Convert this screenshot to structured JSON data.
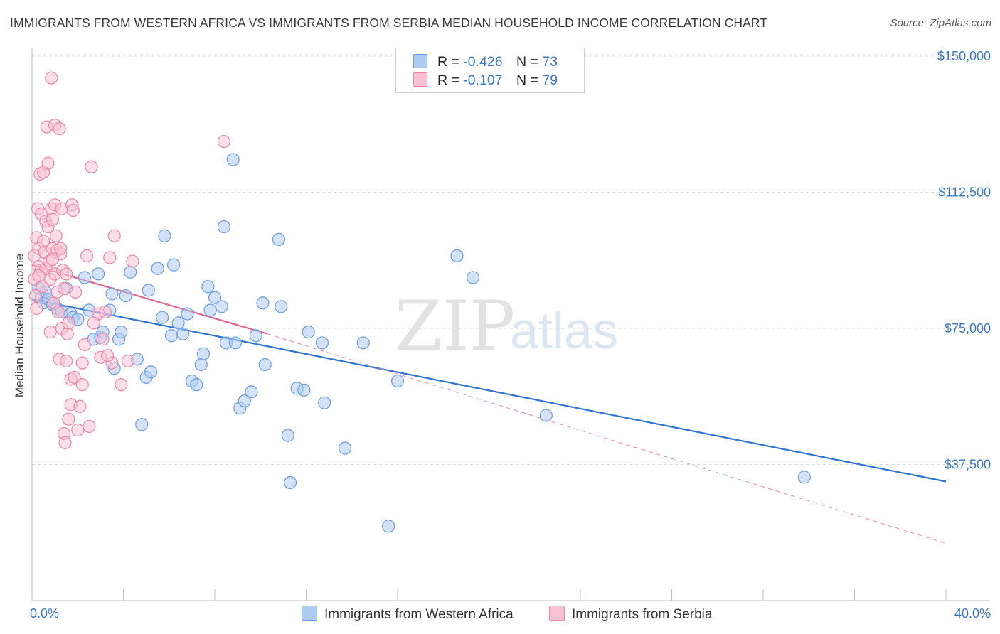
{
  "header": {
    "title": "IMMIGRANTS FROM WESTERN AFRICA VS IMMIGRANTS FROM SERBIA MEDIAN HOUSEHOLD INCOME CORRELATION CHART",
    "source": "Source: ZipAtlas.com"
  },
  "watermark": {
    "zip": "ZIP",
    "atlas": "atlas"
  },
  "legend": {
    "r_label": "R =",
    "n_label": "N =",
    "rows": [
      {
        "r": "-0.426",
        "n": "73",
        "color": "#aecbf0",
        "border": "#6a9de0"
      },
      {
        "r": "-0.107",
        "n": "79",
        "color": "#f8c2d4",
        "border": "#ec86a8"
      }
    ]
  },
  "bottom_legend": {
    "items": [
      {
        "label": "Immigrants from Western Africa",
        "color": "#aecbf0",
        "border": "#6a9de0"
      },
      {
        "label": "Immigrants from Serbia",
        "color": "#f8c2d4",
        "border": "#ec86a8"
      }
    ]
  },
  "chart_data": {
    "type": "scatter",
    "title": "IMMIGRANTS FROM WESTERN AFRICA VS IMMIGRANTS FROM SERBIA MEDIAN HOUSEHOLD INCOME CORRELATION CHART",
    "xlabel": "",
    "ylabel": "Median Household Income",
    "xlim": [
      0,
      40
    ],
    "ylim": [
      0,
      155000
    ],
    "x_tick_labels": [
      "0.0%",
      "40.0%"
    ],
    "y_ticks": [
      37500,
      75000,
      112500,
      150000
    ],
    "y_tick_labels": [
      "$37,500",
      "$75,000",
      "$112,500",
      "$150,000"
    ],
    "grid": true,
    "legend_placement": "top-center",
    "series": [
      {
        "name": "Immigrants from Western Africa",
        "color": "#6a9de0",
        "fill": "#aecbf0",
        "trend": {
          "x": [
            0,
            40
          ],
          "y": [
            83000,
            32800
          ]
        },
        "points": [
          [
            0.3,
            86000
          ],
          [
            0.4,
            83500
          ],
          [
            0.5,
            82000
          ],
          [
            0.6,
            85000
          ],
          [
            0.7,
            83000
          ],
          [
            0.9,
            81500
          ],
          [
            1.1,
            80500
          ],
          [
            1.3,
            79500
          ],
          [
            1.5,
            86000
          ],
          [
            1.7,
            79000
          ],
          [
            1.8,
            78000
          ],
          [
            2.0,
            77500
          ],
          [
            2.3,
            89000
          ],
          [
            2.5,
            80000
          ],
          [
            2.7,
            72000
          ],
          [
            2.9,
            90000
          ],
          [
            3.0,
            72500
          ],
          [
            3.1,
            74000
          ],
          [
            3.4,
            80000
          ],
          [
            3.5,
            84500
          ],
          [
            3.6,
            64000
          ],
          [
            3.8,
            72000
          ],
          [
            3.9,
            74000
          ],
          [
            4.1,
            84000
          ],
          [
            4.3,
            90500
          ],
          [
            4.6,
            66500
          ],
          [
            4.8,
            48500
          ],
          [
            5.0,
            61500
          ],
          [
            5.1,
            85500
          ],
          [
            5.2,
            63000
          ],
          [
            5.5,
            91500
          ],
          [
            5.7,
            78000
          ],
          [
            5.8,
            100500
          ],
          [
            6.1,
            73000
          ],
          [
            6.2,
            92500
          ],
          [
            6.4,
            76500
          ],
          [
            6.6,
            73500
          ],
          [
            6.8,
            79000
          ],
          [
            7.0,
            60500
          ],
          [
            7.2,
            59500
          ],
          [
            7.4,
            65000
          ],
          [
            7.5,
            68000
          ],
          [
            7.7,
            86500
          ],
          [
            7.8,
            80000
          ],
          [
            8.0,
            83500
          ],
          [
            8.3,
            81000
          ],
          [
            8.4,
            103000
          ],
          [
            8.5,
            71000
          ],
          [
            8.8,
            121500
          ],
          [
            8.9,
            71000
          ],
          [
            9.1,
            53000
          ],
          [
            9.3,
            55000
          ],
          [
            9.6,
            57500
          ],
          [
            9.8,
            73000
          ],
          [
            10.1,
            82000
          ],
          [
            10.2,
            65000
          ],
          [
            10.8,
            99500
          ],
          [
            10.9,
            81000
          ],
          [
            11.2,
            45500
          ],
          [
            11.3,
            32500
          ],
          [
            11.6,
            58500
          ],
          [
            11.9,
            58000
          ],
          [
            12.1,
            74000
          ],
          [
            12.7,
            71000
          ],
          [
            12.8,
            54500
          ],
          [
            13.7,
            42000
          ],
          [
            14.5,
            71000
          ],
          [
            15.6,
            20500
          ],
          [
            16.0,
            60500
          ],
          [
            18.6,
            95000
          ],
          [
            19.3,
            89000
          ],
          [
            22.5,
            51000
          ],
          [
            33.8,
            34000
          ]
        ]
      },
      {
        "name": "Immigrants from Serbia",
        "color": "#ec86a8",
        "fill": "#f8c2d4",
        "trend": {
          "x": [
            0,
            10.3
          ],
          "y": [
            92500,
            73500
          ]
        },
        "trend_extension": {
          "x": [
            10.3,
            40
          ],
          "y": [
            73500,
            15800
          ]
        },
        "points": [
          [
            0.1,
            95000
          ],
          [
            0.1,
            88500
          ],
          [
            0.15,
            84000
          ],
          [
            0.2,
            100000
          ],
          [
            0.2,
            80500
          ],
          [
            0.25,
            108000
          ],
          [
            0.3,
            97000
          ],
          [
            0.3,
            92000
          ],
          [
            0.35,
            117500
          ],
          [
            0.4,
            106500
          ],
          [
            0.4,
            91000
          ],
          [
            0.45,
            86500
          ],
          [
            0.5,
            118000
          ],
          [
            0.5,
            99000
          ],
          [
            0.55,
            96000
          ],
          [
            0.6,
            104500
          ],
          [
            0.6,
            91500
          ],
          [
            0.65,
            130500
          ],
          [
            0.7,
            120500
          ],
          [
            0.7,
            103000
          ],
          [
            0.75,
            93500
          ],
          [
            0.8,
            88500
          ],
          [
            0.8,
            74000
          ],
          [
            0.85,
            144000
          ],
          [
            0.85,
            108000
          ],
          [
            0.9,
            105000
          ],
          [
            0.9,
            97000
          ],
          [
            0.95,
            82000
          ],
          [
            1.0,
            131000
          ],
          [
            1.0,
            109000
          ],
          [
            1.0,
            90000
          ],
          [
            1.05,
            100500
          ],
          [
            1.1,
            96500
          ],
          [
            1.1,
            85000
          ],
          [
            1.15,
            79500
          ],
          [
            1.2,
            130000
          ],
          [
            1.2,
            66500
          ],
          [
            1.25,
            95500
          ],
          [
            1.3,
            108000
          ],
          [
            1.3,
            75000
          ],
          [
            1.35,
            91000
          ],
          [
            1.4,
            86000
          ],
          [
            1.4,
            46000
          ],
          [
            1.45,
            43500
          ],
          [
            1.5,
            90000
          ],
          [
            1.5,
            66000
          ],
          [
            1.55,
            73500
          ],
          [
            1.6,
            76500
          ],
          [
            1.6,
            50000
          ],
          [
            1.7,
            61000
          ],
          [
            1.7,
            54000
          ],
          [
            1.75,
            109000
          ],
          [
            1.8,
            107500
          ],
          [
            1.85,
            61500
          ],
          [
            1.9,
            85000
          ],
          [
            2.0,
            47000
          ],
          [
            2.1,
            53500
          ],
          [
            2.2,
            65500
          ],
          [
            2.2,
            59500
          ],
          [
            2.3,
            70500
          ],
          [
            2.4,
            95000
          ],
          [
            2.5,
            48000
          ],
          [
            2.6,
            119500
          ],
          [
            2.9,
            79000
          ],
          [
            3.0,
            67000
          ],
          [
            3.1,
            72000
          ],
          [
            3.2,
            79500
          ],
          [
            3.4,
            94500
          ],
          [
            3.5,
            65500
          ],
          [
            3.6,
            100500
          ],
          [
            3.9,
            59500
          ],
          [
            4.2,
            66000
          ],
          [
            3.3,
            67500
          ],
          [
            2.7,
            76500
          ],
          [
            4.4,
            93500
          ],
          [
            8.4,
            126500
          ],
          [
            0.9,
            94000
          ],
          [
            1.25,
            97000
          ],
          [
            0.3,
            89500
          ]
        ]
      }
    ]
  }
}
